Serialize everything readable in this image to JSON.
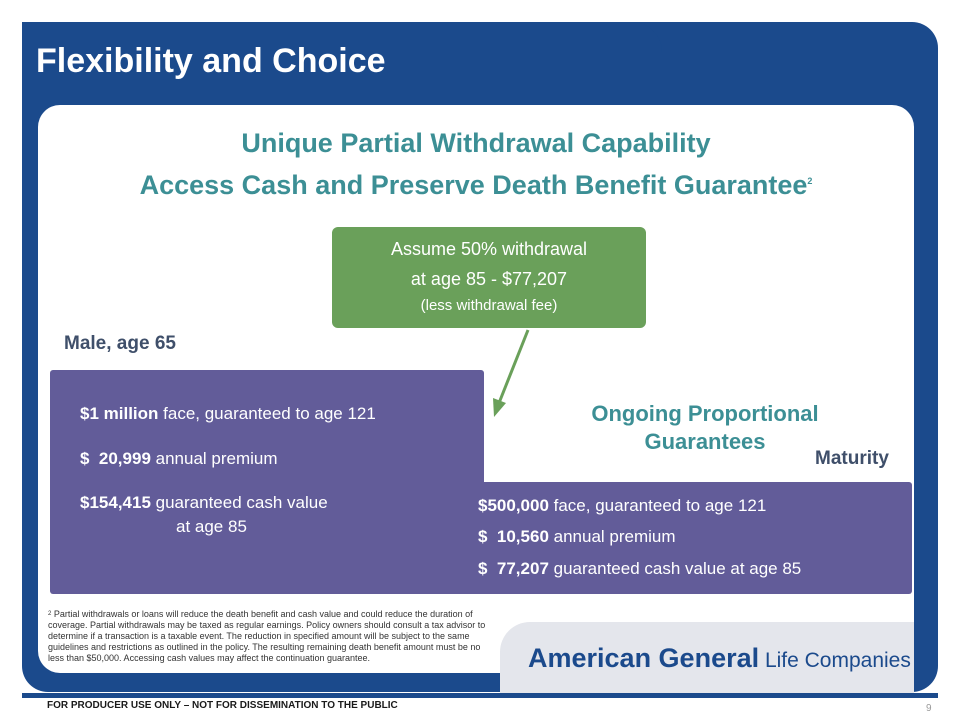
{
  "slide": {
    "title": "Flexibility and Choice",
    "heading1": "Unique Partial Withdrawal Capability",
    "heading2": "Access Cash and Preserve Death Benefit Guarantee",
    "heading2_sup": "2",
    "colors": {
      "navy": "#1b4a8c",
      "teal": "#3c8f95",
      "purple": "#625c99",
      "green": "#6aa05a"
    }
  },
  "callout": {
    "line1": "Assume 50% withdrawal",
    "line2": "at age 85 - $77,207",
    "line3": "(less withdrawal fee)"
  },
  "left_box": {
    "label": "Male, age 65",
    "face_bold": "$1 million",
    "face_rest": " face, guaranteed to age 121",
    "premium_bold": "$  20,999",
    "premium_rest": " annual premium",
    "cash_bold": "$154,415",
    "cash_rest": " guaranteed cash value",
    "cash_line2": "at age 85"
  },
  "right_box": {
    "heading": "Ongoing Proportional Guarantees",
    "label": "Maturity",
    "face_bold": "$500,000",
    "face_rest": " face, guaranteed to age 121",
    "premium_bold": "$  10,560",
    "premium_rest": " annual premium",
    "cash_bold": "$  77,207",
    "cash_rest": " guaranteed cash value at age 85"
  },
  "footnote": {
    "marker": "2",
    "text": " Partial withdrawals or loans will reduce the death benefit and cash value and could reduce the duration of coverage. Partial withdrawals may be taxed as regular earnings. Policy owners should consult a tax advisor to determine if a transaction is a taxable event. The reduction in specified amount will be subject to the same guidelines and restrictions as outlined in the policy. The resulting remaining death benefit amount must be no less than $50,000. Accessing cash values may affect the continuation guarantee."
  },
  "brand": {
    "bold": "American General",
    "regular": " Life Companies"
  },
  "footer": {
    "disclaimer": "FOR PRODUCER USE ONLY – NOT FOR DISSEMINATION TO THE PUBLIC",
    "page_number": "9"
  }
}
